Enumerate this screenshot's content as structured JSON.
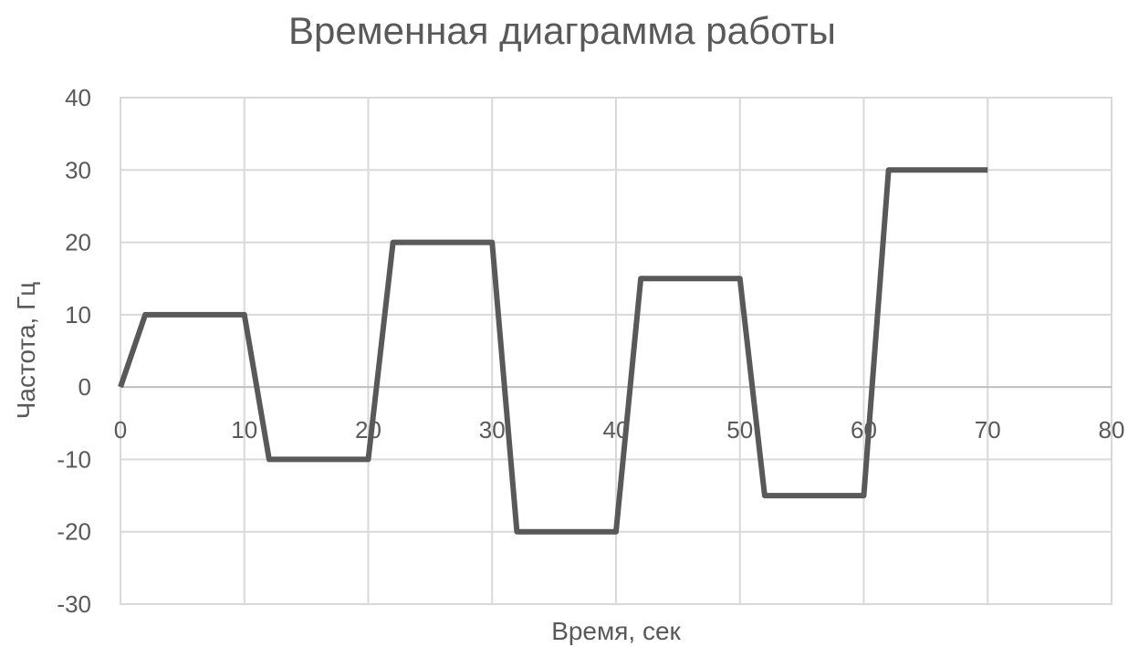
{
  "chart_data": {
    "type": "line",
    "title": "Временная диаграмма работы",
    "xlabel": "Время, сек",
    "ylabel": "Частота, Гц",
    "xlim": [
      0,
      80
    ],
    "ylim": [
      -30,
      40
    ],
    "x_ticks": [
      0,
      10,
      20,
      30,
      40,
      50,
      60,
      70,
      80
    ],
    "y_ticks": [
      40,
      30,
      20,
      10,
      0,
      -10,
      -20,
      -30
    ],
    "grid": true,
    "legend": false,
    "series": [
      {
        "x": [
          0,
          2,
          10,
          12,
          20,
          22,
          30,
          32,
          40,
          42,
          50,
          52,
          60,
          62,
          70
        ],
        "y": [
          0,
          10,
          10,
          -10,
          -10,
          20,
          20,
          -20,
          -20,
          15,
          15,
          -15,
          -15,
          30,
          30
        ],
        "color": "#595959"
      }
    ]
  }
}
